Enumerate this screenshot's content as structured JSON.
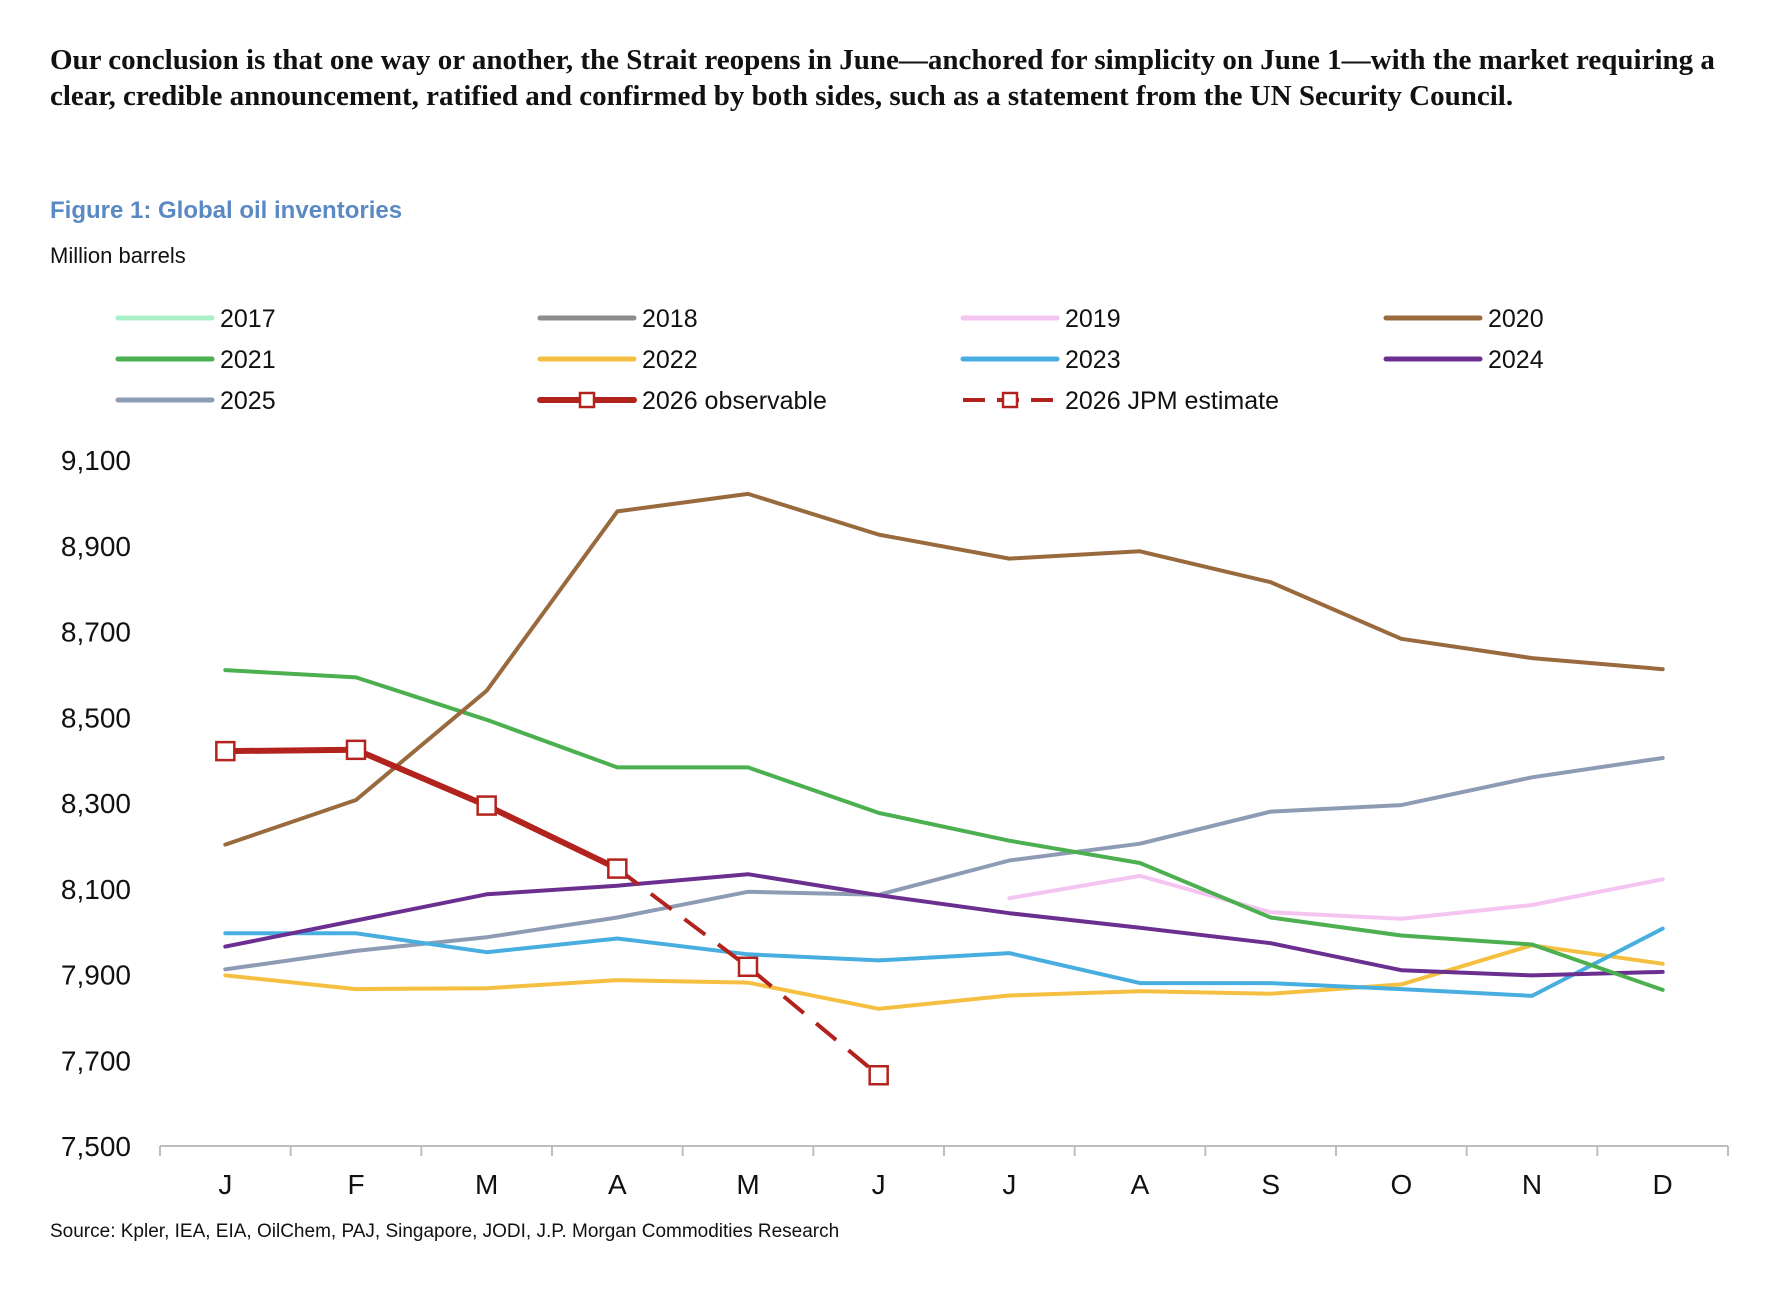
{
  "intro": {
    "text": "Our conclusion is that one way or another, the Strait reopens in June—anchored for simplicity on June 1—with the market requiring a clear, credible announcement, ratified and confirmed by both sides, such as a statement from the UN Security Council."
  },
  "figure": {
    "title": "Figure 1: Global oil inventories",
    "unit": "Million barrels",
    "source": "Source: Kpler, IEA, EIA, OilChem, PAJ, Singapore, JODI, J.P. Morgan Commodities Research"
  },
  "chart_data": {
    "type": "line",
    "title": "Figure 1: Global oil inventories",
    "ylabel": "Million barrels",
    "xlabel": "",
    "categories": [
      "J",
      "F",
      "M",
      "A",
      "M",
      "J",
      "J",
      "A",
      "S",
      "O",
      "N",
      "D"
    ],
    "ylim": [
      7500,
      9100
    ],
    "yticks": [
      7500,
      7700,
      7900,
      8100,
      8300,
      8500,
      8700,
      8900,
      9100
    ],
    "ytick_labels": [
      "7,500",
      "7,700",
      "7,900",
      "8,100",
      "8,300",
      "8,500",
      "8,700",
      "8,900",
      "9,100"
    ],
    "grid": false,
    "legend_position": "top",
    "series": [
      {
        "name": "2017",
        "color": "#a9f0c8",
        "style": "solid",
        "values": [
          null,
          null,
          null,
          null,
          null,
          null,
          null,
          null,
          null,
          null,
          null,
          null
        ]
      },
      {
        "name": "2018",
        "color": "#8c8c8c",
        "style": "solid",
        "values": [
          null,
          null,
          null,
          null,
          null,
          null,
          null,
          null,
          null,
          null,
          null,
          null
        ]
      },
      {
        "name": "2019",
        "color": "#f5c5f2",
        "style": "solid",
        "values": [
          null,
          null,
          null,
          null,
          null,
          null,
          8078,
          8130,
          8045,
          8030,
          8062,
          8122
        ]
      },
      {
        "name": "2020",
        "color": "#986a3d",
        "style": "solid",
        "values": [
          8203,
          8307,
          8562,
          8980,
          9021,
          8926,
          8870,
          8887,
          8815,
          8683,
          8638,
          8612
        ]
      },
      {
        "name": "2021",
        "color": "#4caf50",
        "style": "solid",
        "values": [
          8610,
          8593,
          8494,
          8383,
          8383,
          8277,
          8212,
          8160,
          8033,
          7991,
          7970,
          7864
        ]
      },
      {
        "name": "2022",
        "color": "#f5c042",
        "style": "solid",
        "values": [
          7898,
          7866,
          7868,
          7887,
          7881,
          7820,
          7851,
          7861,
          7855,
          7877,
          7968,
          7925
        ]
      },
      {
        "name": "2023",
        "color": "#48aee0",
        "style": "solid",
        "values": [
          7996,
          7996,
          7952,
          7984,
          7947,
          7933,
          7950,
          7880,
          7880,
          7866,
          7850,
          8007
        ]
      },
      {
        "name": "2024",
        "color": "#6b2f90",
        "style": "solid",
        "values": [
          7965,
          8026,
          8087,
          8107,
          8134,
          8085,
          8043,
          8009,
          7973,
          7910,
          7898,
          7906
        ]
      },
      {
        "name": "2025",
        "color": "#8e9bb5",
        "style": "solid",
        "values": [
          7912,
          7955,
          7987,
          8033,
          8093,
          8086,
          8166,
          8205,
          8280,
          8295,
          8360,
          8405
        ]
      },
      {
        "name": "2026 observable",
        "color": "#b2231d",
        "style": "solid-thick-markers",
        "values": [
          8421,
          8424,
          8294,
          8147,
          null,
          null,
          null,
          null,
          null,
          null,
          null,
          null
        ]
      },
      {
        "name": "2026 JPM estimate",
        "color": "#b2231d",
        "style": "dashed-markers",
        "values": [
          null,
          null,
          null,
          8147,
          7918,
          7665,
          null,
          null,
          null,
          null,
          null,
          null
        ]
      }
    ]
  }
}
